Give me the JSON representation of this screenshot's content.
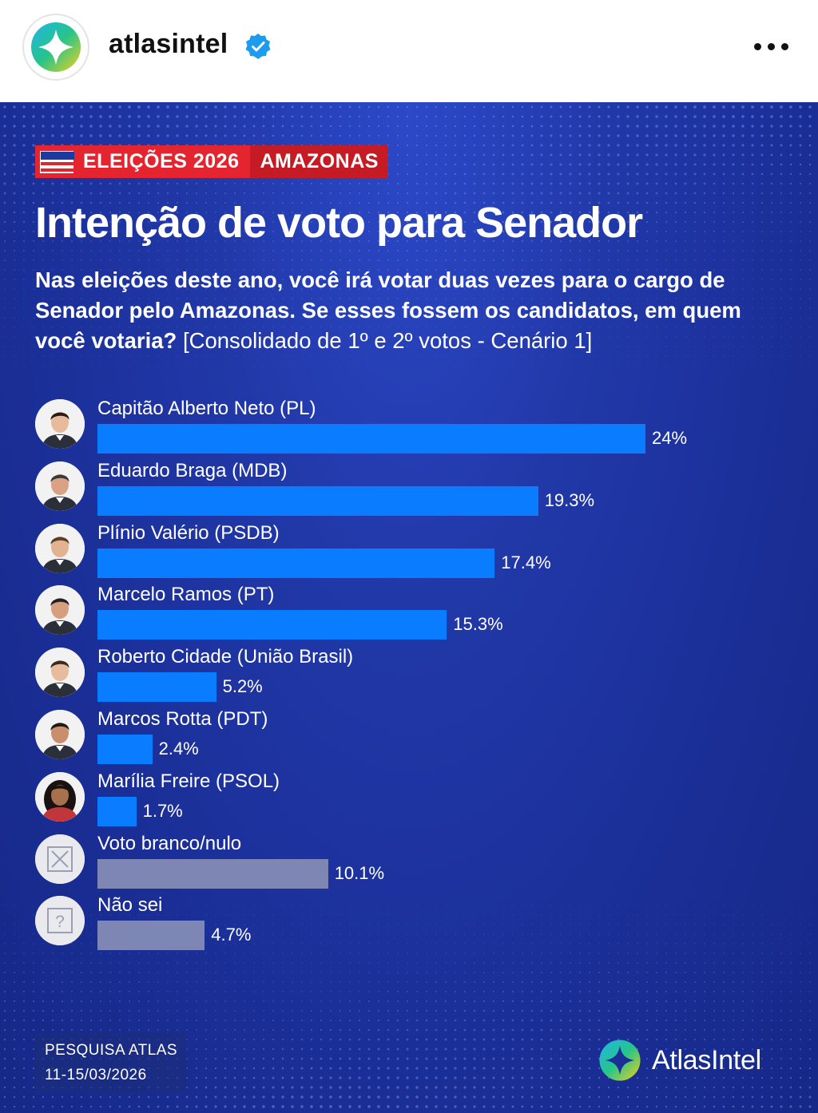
{
  "header": {
    "account_name": "atlasintel",
    "avatar_icon": "atlasintel-logo-icon",
    "verified_icon": "verified-badge-icon",
    "more_icon": "more-options-icon"
  },
  "post": {
    "tag": {
      "label": "ELEIÇÕES 2026",
      "region": "AMAZONAS",
      "flag_icon": "amazonas-flag-icon"
    },
    "title": "Intenção de voto para Senador",
    "question_strong": "Nas eleições deste ano, você irá votar duas vezes para o cargo de Senador pelo Amazonas. Se esses fossem os candidatos, em quem você votaria?",
    "question_light": "[Consolidado de 1º e 2º votos - Cenário 1]",
    "footer": {
      "line1": "PESQUISA ATLAS",
      "line2": "11-15/03/2026"
    },
    "brand": "AtlasIntel",
    "colors": {
      "background": "#1e33a3",
      "bar_candidate": "#0a7cff",
      "bar_other": "#7e86b4",
      "tag_red": "#e4252f",
      "tag_red_dark": "#c51b24"
    }
  },
  "chart_data": {
    "type": "bar",
    "orientation": "horizontal",
    "unit": "%",
    "categories": [
      "Capitão Alberto Neto (PL)",
      "Eduardo Braga (MDB)",
      "Plínio Valério (PSDB)",
      "Marcelo Ramos (PT)",
      "Roberto Cidade (União Brasil)",
      "Marcos Rotta (PDT)",
      "Marília Freire (PSOL)",
      "Voto branco/nulo",
      "Não sei"
    ],
    "values": [
      24,
      19.3,
      17.4,
      15.3,
      5.2,
      2.4,
      1.7,
      10.1,
      4.7
    ],
    "value_labels": [
      "24%",
      "19.3%",
      "17.4%",
      "15.3%",
      "5.2%",
      "2.4%",
      "1.7%",
      "10.1%",
      "4.7%"
    ],
    "kinds": [
      "candidate",
      "candidate",
      "candidate",
      "candidate",
      "candidate",
      "candidate",
      "candidate",
      "blank",
      "unknown"
    ],
    "icons": [
      "candidate-photo-icon",
      "candidate-photo-icon",
      "candidate-photo-icon",
      "candidate-photo-icon",
      "candidate-photo-icon",
      "candidate-photo-icon",
      "candidate-photo-icon",
      "blank-null-vote-icon",
      "question-mark-icon"
    ],
    "xlim": [
      0,
      24
    ],
    "grid": false,
    "legend": "none"
  }
}
